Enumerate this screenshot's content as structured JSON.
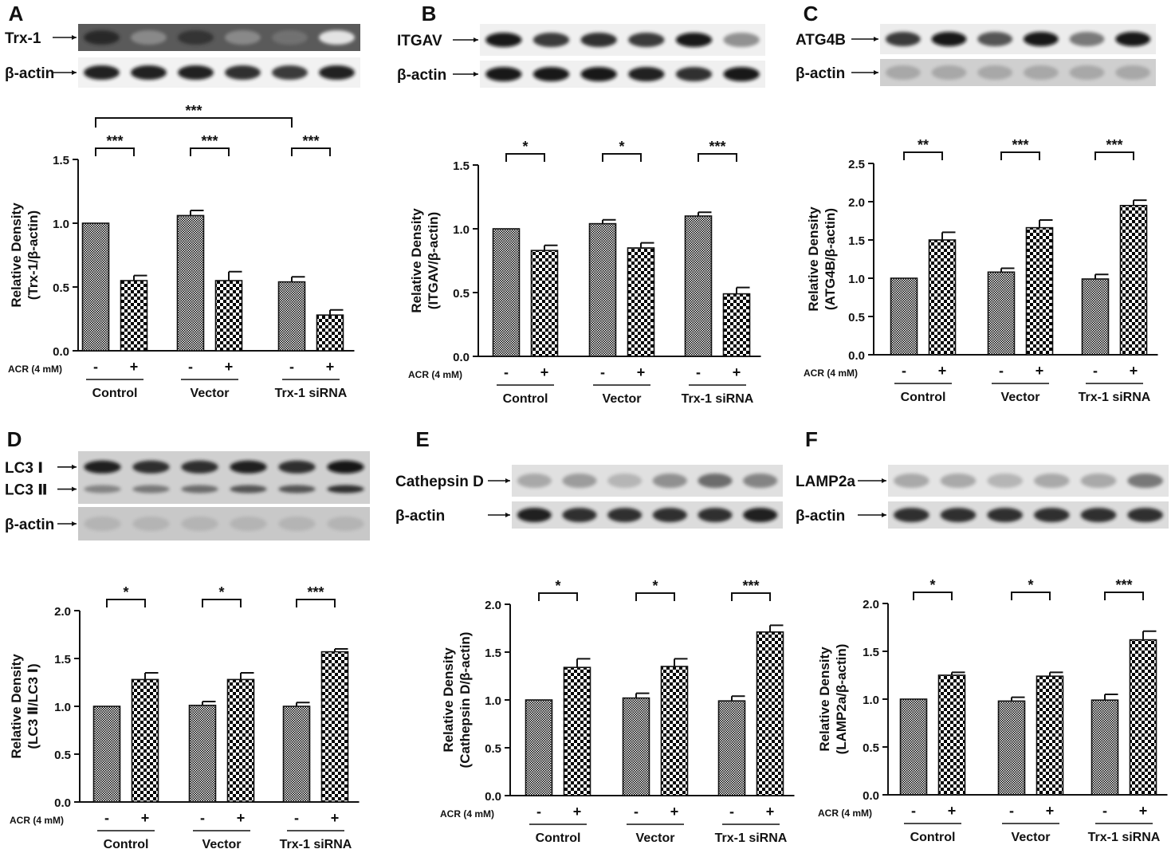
{
  "figure": {
    "panels": [
      {
        "letter": "A",
        "blot": {
          "rows": [
            {
              "label": "Trx-1",
              "intensity": [
                0.85,
                0.45,
                0.8,
                0.45,
                0.55,
                0.08
              ],
              "bg": "#5a5a5a"
            },
            {
              "label": "β-actin",
              "intensity": [
                0.9,
                0.9,
                0.9,
                0.85,
                0.8,
                0.9
              ],
              "bg": "#f2f2f2"
            }
          ]
        }
      },
      {
        "letter": "B",
        "blot": {
          "rows": [
            {
              "label": "ITGAV",
              "intensity": [
                0.95,
                0.8,
                0.85,
                0.8,
                0.95,
                0.45
              ],
              "bg": "#f0f0f0"
            },
            {
              "label": "β-actin",
              "intensity": [
                0.95,
                0.95,
                0.95,
                0.9,
                0.85,
                0.95
              ],
              "bg": "#f0f0f0"
            }
          ]
        }
      },
      {
        "letter": "C",
        "blot": {
          "rows": [
            {
              "label": "ATG4B",
              "intensity": [
                0.8,
                0.95,
                0.7,
                0.95,
                0.55,
                0.95
              ],
              "bg": "#ececec"
            },
            {
              "label": "β-actin",
              "intensity": [
                0.35,
                0.35,
                0.35,
                0.35,
                0.35,
                0.35
              ],
              "bg": "#cfcfcf"
            }
          ]
        }
      },
      {
        "letter": "D",
        "blot": {
          "rows": [
            {
              "label": "LC3 Ⅰ",
              "intensity": [
                0.9,
                0.85,
                0.85,
                0.9,
                0.85,
                0.95
              ],
              "bg": "#d0d0d0"
            },
            {
              "label": "LC3 Ⅱ",
              "intensity": [
                0.5,
                0.55,
                0.6,
                0.7,
                0.7,
                0.85
              ],
              "bg": "#d0d0d0"
            },
            {
              "label": "β-actin",
              "intensity": [
                0.3,
                0.3,
                0.3,
                0.3,
                0.3,
                0.3
              ],
              "bg": "#c8c8c8"
            }
          ]
        }
      },
      {
        "letter": "E",
        "blot": {
          "rows": [
            {
              "label": "Cathepsin D",
              "intensity": [
                0.35,
                0.4,
                0.3,
                0.45,
                0.6,
                0.5
              ],
              "bg": "#e0e0e0"
            },
            {
              "label": "β-actin",
              "intensity": [
                0.9,
                0.85,
                0.85,
                0.85,
                0.85,
                0.9
              ],
              "bg": "#dcdcdc"
            }
          ]
        }
      },
      {
        "letter": "F",
        "blot": {
          "rows": [
            {
              "label": "LAMP2a",
              "intensity": [
                0.35,
                0.35,
                0.3,
                0.35,
                0.35,
                0.55
              ],
              "bg": "#e4e4e4"
            },
            {
              "label": "β-actin",
              "intensity": [
                0.85,
                0.85,
                0.85,
                0.85,
                0.85,
                0.85
              ],
              "bg": "#dcdcdc"
            }
          ]
        }
      }
    ],
    "treatment_label": "ACR (4 mM)",
    "lane_signs": [
      "-",
      "+"
    ]
  },
  "chart_data": [
    {
      "panel": "A",
      "type": "bar",
      "categories": [
        "Control",
        "Vector",
        "Trx-1 siRNA"
      ],
      "series": [
        {
          "values": [
            1.0,
            1.06,
            0.54
          ]
        },
        {
          "values": [
            0.55,
            0.55,
            0.28
          ]
        }
      ],
      "errors": [
        [
          0.0,
          0.04,
          0.04
        ],
        [
          0.04,
          0.07,
          0.04
        ]
      ],
      "ylabel": [
        "Relative Density",
        "(Trx-1/β-actin)"
      ],
      "ylim": [
        0,
        1.5
      ],
      "yticks": [
        "0.0",
        "0.5",
        "1.0",
        "1.5"
      ],
      "significance": [
        "***",
        "***",
        "***"
      ],
      "extra_bracket": {
        "from": 0,
        "to": 2,
        "label": "***"
      }
    },
    {
      "panel": "B",
      "type": "bar",
      "categories": [
        "Control",
        "Vector",
        "Trx-1 siRNA"
      ],
      "series": [
        {
          "values": [
            1.0,
            1.04,
            1.1
          ]
        },
        {
          "values": [
            0.83,
            0.85,
            0.49
          ]
        }
      ],
      "errors": [
        [
          0.0,
          0.03,
          0.03
        ],
        [
          0.04,
          0.04,
          0.05
        ]
      ],
      "ylabel": [
        "Relative Density",
        "(ITGAV/β-actin)"
      ],
      "ylim": [
        0,
        1.5
      ],
      "yticks": [
        "0.0",
        "0.5",
        "1.0",
        "1.5"
      ],
      "significance": [
        "*",
        "*",
        "***"
      ]
    },
    {
      "panel": "C",
      "type": "bar",
      "categories": [
        "Control",
        "Vector",
        "Trx-1 siRNA"
      ],
      "series": [
        {
          "values": [
            1.0,
            1.08,
            0.99
          ]
        },
        {
          "values": [
            1.5,
            1.66,
            1.95
          ]
        }
      ],
      "errors": [
        [
          0.0,
          0.05,
          0.06
        ],
        [
          0.1,
          0.1,
          0.07
        ]
      ],
      "ylabel": [
        "Relative Density",
        "(ATG4B/β-actin)"
      ],
      "ylim": [
        0,
        2.5
      ],
      "yticks": [
        "0.0",
        "0.5",
        "1.0",
        "1.5",
        "2.0",
        "2.5"
      ],
      "significance": [
        "**",
        "***",
        "***"
      ]
    },
    {
      "panel": "D",
      "type": "bar",
      "categories": [
        "Control",
        "Vector",
        "Trx-1 siRNA"
      ],
      "series": [
        {
          "values": [
            1.0,
            1.01,
            1.0
          ]
        },
        {
          "values": [
            1.28,
            1.28,
            1.57
          ]
        }
      ],
      "errors": [
        [
          0.0,
          0.04,
          0.04
        ],
        [
          0.07,
          0.07,
          0.03
        ]
      ],
      "ylabel": [
        "Relative Density",
        "(LC3 Ⅱ/LC3 Ⅰ)"
      ],
      "ylim": [
        0,
        2.0
      ],
      "yticks": [
        "0.0",
        "0.5",
        "1.0",
        "1.5",
        "2.0"
      ],
      "significance": [
        "*",
        "*",
        "***"
      ]
    },
    {
      "panel": "E",
      "type": "bar",
      "categories": [
        "Control",
        "Vector",
        "Trx-1 siRNA"
      ],
      "series": [
        {
          "values": [
            1.0,
            1.02,
            0.99
          ]
        },
        {
          "values": [
            1.34,
            1.35,
            1.71
          ]
        }
      ],
      "errors": [
        [
          0.0,
          0.05,
          0.05
        ],
        [
          0.09,
          0.08,
          0.07
        ]
      ],
      "ylabel": [
        "Relative Density",
        "(Cathepsin D/β-actin)"
      ],
      "ylim": [
        0,
        2.0
      ],
      "yticks": [
        "0.0",
        "0.5",
        "1.0",
        "1.5",
        "2.0"
      ],
      "significance": [
        "*",
        "*",
        "***"
      ]
    },
    {
      "panel": "F",
      "type": "bar",
      "categories": [
        "Control",
        "Vector",
        "Trx-1 siRNA"
      ],
      "series": [
        {
          "values": [
            1.0,
            0.98,
            0.99
          ]
        },
        {
          "values": [
            1.25,
            1.24,
            1.62
          ]
        }
      ],
      "errors": [
        [
          0.0,
          0.04,
          0.06
        ],
        [
          0.03,
          0.04,
          0.09
        ]
      ],
      "ylabel": [
        "Relative Density",
        "(LAMP2a/β-actin)"
      ],
      "ylim": [
        0,
        2.0
      ],
      "yticks": [
        "0.0",
        "0.5",
        "1.0",
        "1.5",
        "2.0"
      ],
      "significance": [
        "*",
        "*",
        "***"
      ]
    }
  ]
}
